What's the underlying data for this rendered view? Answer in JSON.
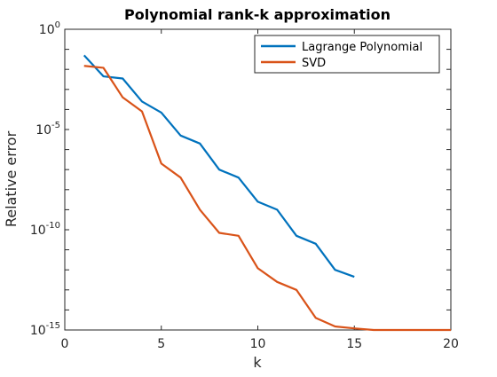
{
  "chart_data": {
    "type": "line",
    "title": "Polynomial rank-k approximation",
    "xlabel": "k",
    "ylabel": "Relative error",
    "xlim": [
      0,
      20
    ],
    "ylim": [
      1e-15,
      1
    ],
    "yscale": "log",
    "xticks": [
      0,
      5,
      10,
      15,
      20
    ],
    "yticks": [
      {
        "value": 1,
        "base": "10",
        "exp": "0"
      },
      {
        "value": 1e-05,
        "base": "10",
        "exp": "-5"
      },
      {
        "value": 1e-10,
        "base": "10",
        "exp": "-10"
      },
      {
        "value": 1e-15,
        "base": "10",
        "exp": "-15"
      }
    ],
    "grid": false,
    "legend_position": "top-right",
    "series": [
      {
        "name": "Lagrange Polynomial",
        "color": "#0072BD",
        "x": [
          1,
          2,
          3,
          4,
          5,
          6,
          7,
          8,
          9,
          10,
          11,
          12,
          13,
          14,
          15
        ],
        "y": [
          0.05,
          0.0045,
          0.0035,
          0.00025,
          7e-05,
          5e-06,
          2e-06,
          1e-07,
          4e-08,
          2.5e-09,
          1e-09,
          5e-11,
          2e-11,
          1e-12,
          4.5e-13
        ]
      },
      {
        "name": "SVD",
        "color": "#D95319",
        "x": [
          1,
          2,
          3,
          4,
          5,
          6,
          7,
          8,
          9,
          10,
          11,
          12,
          13,
          14,
          15,
          16,
          17,
          18,
          19,
          20
        ],
        "y": [
          0.015,
          0.012,
          0.0004,
          8e-05,
          2e-07,
          4e-08,
          1e-09,
          7e-11,
          5e-11,
          1.2e-12,
          2.5e-13,
          1e-13,
          4e-15,
          1.5e-15,
          1.2e-15,
          1e-15,
          1e-15,
          1e-15,
          1e-15,
          1e-15
        ]
      }
    ]
  }
}
